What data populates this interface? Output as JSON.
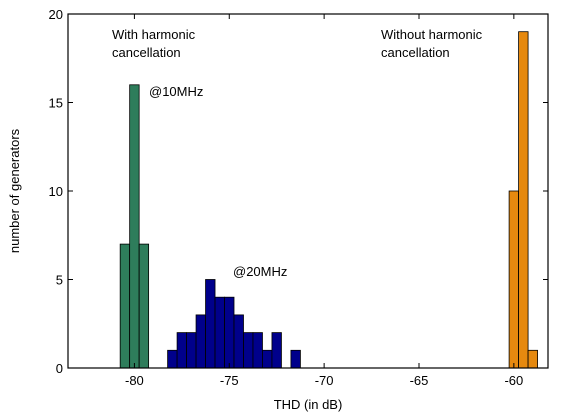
{
  "chart_data": {
    "type": "bar",
    "xlabel": "THD (in dB)",
    "ylabel": "number of generators",
    "xlim": [
      -83.5,
      -58.2
    ],
    "ylim": [
      0,
      20
    ],
    "xticks": [
      -80,
      -75,
      -70,
      -65,
      -60
    ],
    "yticks": [
      0,
      5,
      10,
      15,
      20
    ],
    "xtick_labels": [
      "-80",
      "-75",
      "-70",
      "-65",
      "-60"
    ],
    "ytick_labels": [
      "0",
      "5",
      "10",
      "15",
      "20"
    ],
    "bin_width": 0.5,
    "series": [
      {
        "color": "#2e7d5b",
        "bins": [
          {
            "x": -80.5,
            "value": 7
          },
          {
            "x": -80.0,
            "value": 16
          },
          {
            "x": -79.5,
            "value": 7
          }
        ]
      },
      {
        "color": "#00008b",
        "bins": [
          {
            "x": -78.0,
            "value": 1
          },
          {
            "x": -77.5,
            "value": 2
          },
          {
            "x": -77.0,
            "value": 2
          },
          {
            "x": -76.5,
            "value": 3
          },
          {
            "x": -76.0,
            "value": 5
          },
          {
            "x": -75.5,
            "value": 4
          },
          {
            "x": -75.0,
            "value": 4
          },
          {
            "x": -74.5,
            "value": 3
          },
          {
            "x": -74.0,
            "value": 2
          },
          {
            "x": -73.5,
            "value": 2
          },
          {
            "x": -73.0,
            "value": 1
          },
          {
            "x": -72.5,
            "value": 2
          },
          {
            "x": -71.5,
            "value": 1
          }
        ]
      },
      {
        "color": "#e6890f",
        "bins": [
          {
            "x": -60.0,
            "value": 10
          },
          {
            "x": -59.5,
            "value": 19
          },
          {
            "x": -59.0,
            "value": 1
          }
        ]
      }
    ],
    "annotations": [
      {
        "id": "with-harmonic",
        "lines": [
          "With harmonic",
          "cancellation"
        ]
      },
      {
        "id": "without-harmonic",
        "lines": [
          "Without harmonic",
          "cancellation"
        ]
      },
      {
        "id": "at-10mhz",
        "lines": [
          "@10MHz"
        ]
      },
      {
        "id": "at-20mhz",
        "lines": [
          "@20MHz"
        ]
      }
    ]
  }
}
